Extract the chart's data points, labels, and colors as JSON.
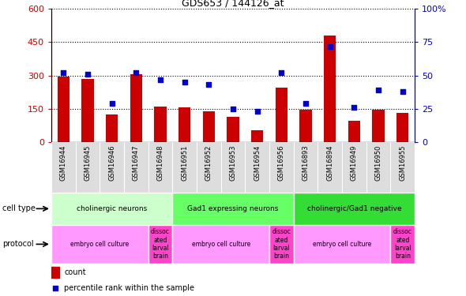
{
  "title": "GDS653 / 144126_at",
  "samples": [
    "GSM16944",
    "GSM16945",
    "GSM16946",
    "GSM16947",
    "GSM16948",
    "GSM16951",
    "GSM16952",
    "GSM16953",
    "GSM16954",
    "GSM16956",
    "GSM16893",
    "GSM16894",
    "GSM16949",
    "GSM16950",
    "GSM16955"
  ],
  "counts": [
    295,
    285,
    125,
    305,
    160,
    155,
    140,
    115,
    55,
    245,
    145,
    480,
    95,
    145,
    130
  ],
  "percentiles": [
    52,
    51,
    29,
    52,
    47,
    45,
    43,
    25,
    23,
    52,
    29,
    72,
    26,
    39,
    38
  ],
  "cell_types": [
    {
      "label": "cholinergic neurons",
      "start": 0,
      "end": 5,
      "color": "#ccffcc"
    },
    {
      "label": "Gad1 expressing neurons",
      "start": 5,
      "end": 10,
      "color": "#66ff66"
    },
    {
      "label": "cholinergic/Gad1 negative",
      "start": 10,
      "end": 15,
      "color": "#33dd33"
    }
  ],
  "protocols": [
    {
      "label": "embryo cell culture",
      "start": 0,
      "end": 4,
      "color": "#ff99ff"
    },
    {
      "label": "dissoc\nated\nlarval\nbrain",
      "start": 4,
      "end": 5,
      "color": "#ff44cc"
    },
    {
      "label": "embryo cell culture",
      "start": 5,
      "end": 9,
      "color": "#ff99ff"
    },
    {
      "label": "dissoc\nated\nlarval\nbrain",
      "start": 9,
      "end": 10,
      "color": "#ff44cc"
    },
    {
      "label": "embryo cell culture",
      "start": 10,
      "end": 14,
      "color": "#ff99ff"
    },
    {
      "label": "dissoc\nated\nlarval\nbrain",
      "start": 14,
      "end": 15,
      "color": "#ff44cc"
    }
  ],
  "bar_color": "#cc0000",
  "scatter_color": "#0000cc",
  "ylim_left": [
    0,
    600
  ],
  "ylim_right": [
    0,
    100
  ],
  "yticks_left": [
    0,
    150,
    300,
    450,
    600
  ],
  "yticks_right": [
    0,
    25,
    50,
    75,
    100
  ],
  "grid_color": "black"
}
